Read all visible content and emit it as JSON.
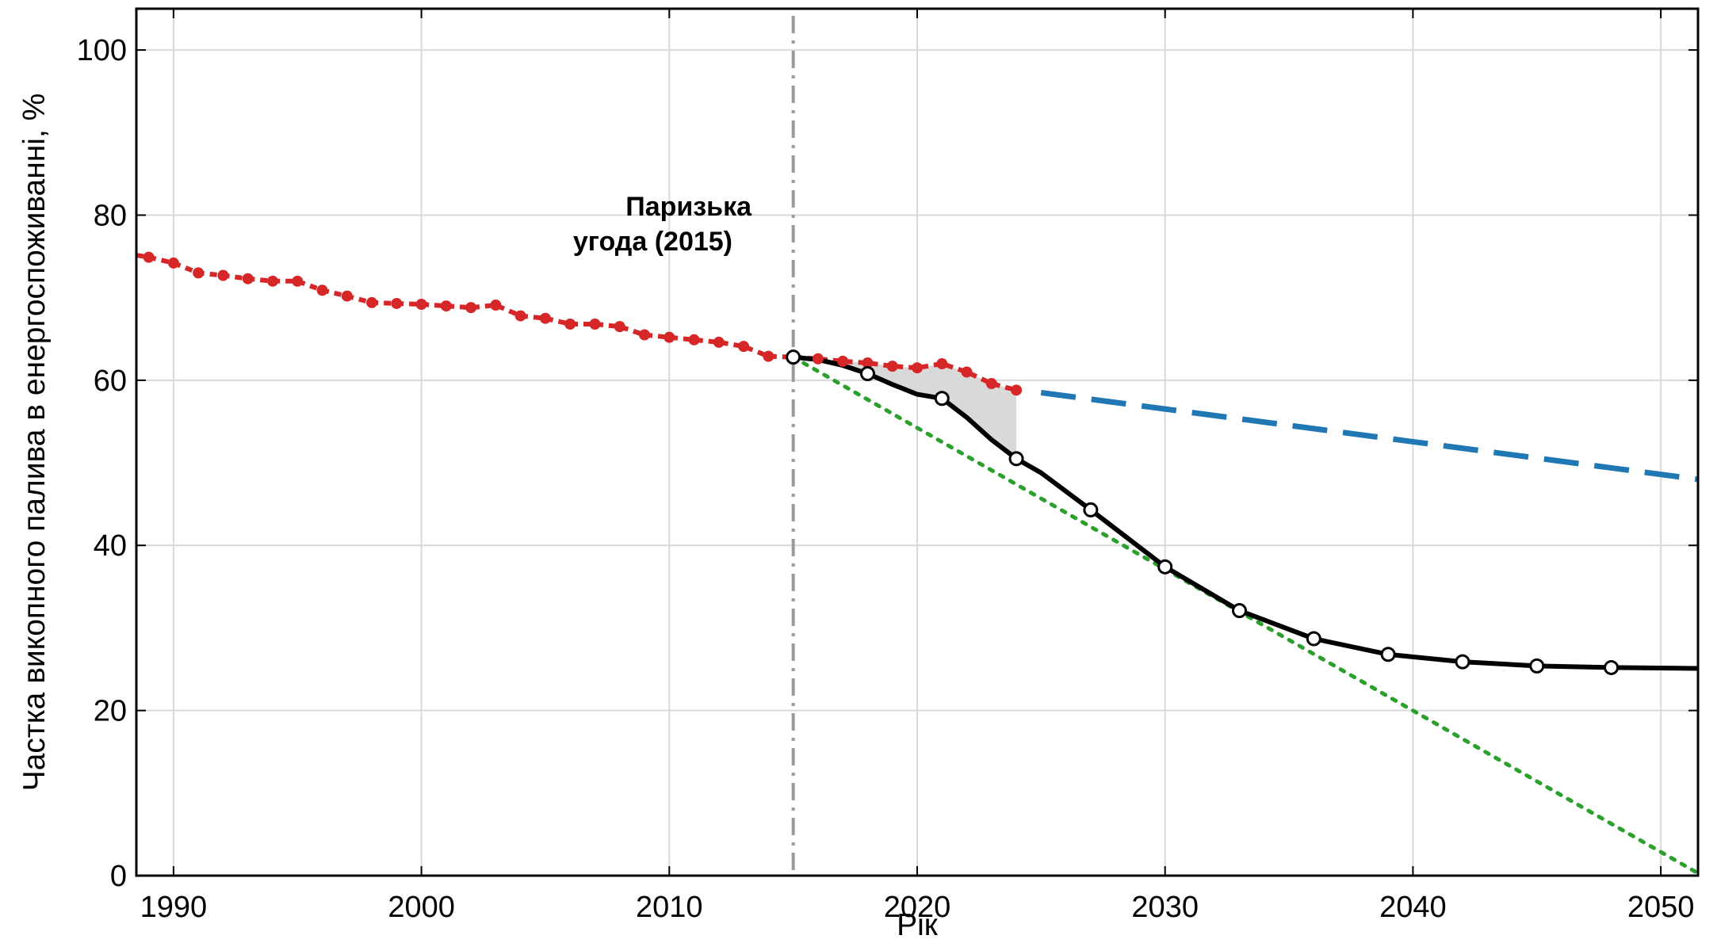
{
  "chart_data": {
    "type": "line",
    "xlabel": "Рік",
    "ylabel": "Частка викопного палива в енергоспоживанні, %",
    "xlim": [
      1988.5,
      2051.5
    ],
    "ylim": [
      0,
      105
    ],
    "x_ticks": [
      1990,
      2000,
      2010,
      2020,
      2030,
      2040,
      2050
    ],
    "y_ticks": [
      0,
      20,
      40,
      60,
      80,
      100
    ],
    "grid": true,
    "annotation": {
      "line1": "Паризька",
      "line2": "угода (2015)",
      "x": 2015
    },
    "series": [
      {
        "style": "red dotted with markers",
        "color": "#d62728",
        "x": [
          1988,
          1989,
          1990,
          1991,
          1992,
          1993,
          1994,
          1995,
          1996,
          1997,
          1998,
          1999,
          2000,
          2001,
          2002,
          2003,
          2004,
          2005,
          2006,
          2007,
          2008,
          2009,
          2010,
          2011,
          2012,
          2013,
          2014,
          2015,
          2016,
          2017,
          2018,
          2019,
          2020,
          2021,
          2022,
          2023,
          2024
        ],
        "y": [
          75.4,
          74.9,
          74.2,
          73.0,
          72.7,
          72.3,
          72.0,
          72.0,
          70.9,
          70.2,
          69.4,
          69.3,
          69.2,
          69.0,
          68.8,
          69.1,
          67.8,
          67.5,
          66.8,
          66.8,
          66.5,
          65.5,
          65.2,
          64.9,
          64.6,
          64.1,
          62.9,
          62.8,
          62.6,
          62.3,
          62.1,
          61.7,
          61.5,
          62.0,
          61.0,
          59.6,
          58.8
        ]
      },
      {
        "style": "blue dashed",
        "color": "#1f77b4",
        "x": [
          2025,
          2051.5
        ],
        "y": [
          58.5,
          48.0
        ]
      },
      {
        "style": "green dotted",
        "color": "#2ca02c",
        "x": [
          2015,
          2051.5
        ],
        "y": [
          62.8,
          0.3
        ]
      },
      {
        "style": "black solid",
        "color": "#000000",
        "x": [
          2015,
          2016,
          2017,
          2018,
          2019,
          2020,
          2021,
          2022,
          2023,
          2024,
          2025,
          2027,
          2030,
          2033,
          2036,
          2039,
          2042,
          2045,
          2048,
          2051.5
        ],
        "y": [
          62.8,
          62.5,
          61.8,
          60.8,
          59.5,
          58.3,
          57.8,
          55.5,
          52.8,
          50.5,
          48.8,
          44.3,
          37.4,
          32.1,
          28.7,
          26.8,
          25.9,
          25.4,
          25.2,
          25.1
        ],
        "markers_x": [
          2015,
          2018,
          2021,
          2024,
          2027,
          2030,
          2033,
          2036,
          2039,
          2042,
          2045,
          2048
        ],
        "markers_y": [
          62.8,
          60.8,
          57.8,
          50.5,
          44.3,
          37.4,
          32.1,
          28.7,
          26.8,
          25.9,
          25.4,
          25.2
        ]
      }
    ],
    "gap_fill": {
      "color": "#d9d9d9",
      "x": [
        2015,
        2016,
        2017,
        2018,
        2019,
        2020,
        2021,
        2022,
        2023,
        2024
      ]
    }
  }
}
